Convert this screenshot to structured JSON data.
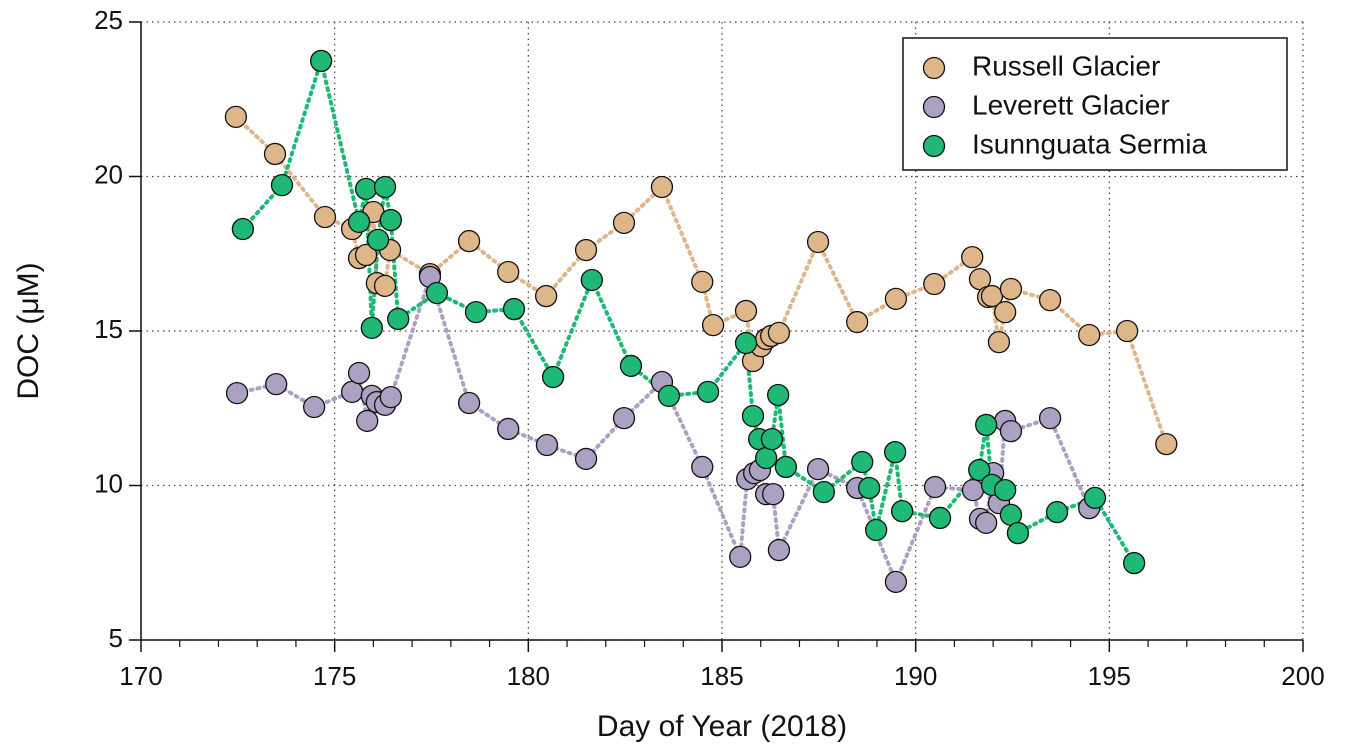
{
  "chart_data": {
    "type": "scatter-line",
    "xlabel": "Day of Year (2018)",
    "ylabel": "DOC (μM)",
    "xlim": [
      170,
      200
    ],
    "ylim": [
      5,
      25
    ],
    "xticks": [
      170,
      175,
      180,
      185,
      190,
      195,
      200
    ],
    "xminorticks": [
      171,
      172,
      173,
      174,
      176,
      177,
      178,
      179,
      181,
      182,
      183,
      184,
      186,
      187,
      188,
      189,
      191,
      192,
      193,
      194,
      196,
      197,
      198,
      199
    ],
    "yticks": [
      5,
      10,
      15,
      20,
      25
    ],
    "grid": true,
    "legend": "upper-right",
    "series": [
      {
        "name": "Russell Glacier",
        "color": "#dfb68a",
        "x": [
          172.45,
          173.46,
          174.75,
          175.45,
          175.63,
          175.81,
          176.0,
          176.09,
          176.3,
          176.43,
          177.46,
          178.47,
          179.48,
          180.46,
          181.49,
          182.47,
          183.45,
          184.49,
          184.77,
          185.62,
          185.8,
          186.01,
          186.14,
          186.27,
          186.47,
          187.48,
          188.49,
          189.49,
          190.48,
          191.46,
          191.66,
          191.87,
          191.97,
          192.15,
          192.31,
          192.46,
          193.47,
          194.48,
          195.46,
          196.47
        ],
        "values": [
          21.93,
          20.73,
          18.69,
          18.3,
          17.36,
          17.46,
          18.85,
          16.55,
          16.46,
          17.62,
          16.84,
          17.91,
          16.91,
          16.13,
          17.62,
          18.5,
          19.66,
          16.59,
          15.19,
          15.65,
          14.03,
          14.51,
          14.74,
          14.84,
          14.94,
          17.88,
          15.29,
          16.04,
          16.52,
          17.39,
          16.68,
          16.1,
          16.13,
          14.64,
          15.61,
          16.36,
          16.0,
          14.87,
          15.0,
          11.34
        ]
      },
      {
        "name": "Leverett Glacier",
        "color": "#aca1c2",
        "x": [
          172.48,
          173.49,
          174.47,
          175.45,
          175.63,
          175.84,
          175.96,
          176.09,
          176.3,
          176.45,
          177.46,
          178.47,
          179.48,
          180.48,
          181.49,
          182.47,
          183.45,
          184.49,
          185.47,
          185.65,
          185.83,
          185.98,
          186.14,
          186.32,
          186.47,
          187.48,
          188.49,
          189.49,
          190.5,
          191.48,
          191.66,
          191.82,
          192.0,
          192.15,
          192.31,
          192.46,
          193.47,
          194.48
        ],
        "values": [
          12.99,
          13.28,
          12.54,
          13.03,
          13.64,
          12.09,
          12.9,
          12.7,
          12.61,
          12.86,
          16.75,
          12.67,
          11.83,
          11.31,
          10.86,
          12.18,
          13.35,
          10.6,
          7.69,
          10.21,
          10.4,
          10.5,
          9.72,
          9.72,
          7.91,
          10.53,
          9.92,
          6.88,
          9.95,
          9.85,
          8.92,
          8.79,
          10.4,
          9.43,
          12.09,
          11.76,
          12.18,
          9.27
        ]
      },
      {
        "name": "Isunnguata Sermia",
        "color": "#1fb874",
        "x": [
          172.63,
          173.64,
          174.65,
          175.63,
          175.81,
          175.96,
          176.12,
          176.3,
          176.45,
          176.64,
          177.64,
          178.65,
          179.63,
          180.64,
          181.64,
          182.65,
          183.63,
          184.64,
          185.62,
          185.8,
          185.96,
          186.14,
          186.29,
          186.45,
          186.65,
          187.63,
          188.62,
          188.8,
          188.98,
          189.47,
          189.65,
          190.63,
          191.64,
          191.82,
          191.97,
          192.31,
          192.46,
          192.64,
          193.65,
          194.63,
          195.64
        ],
        "values": [
          18.3,
          19.72,
          23.74,
          18.53,
          19.6,
          15.1,
          17.95,
          19.66,
          18.59,
          15.39,
          16.23,
          15.61,
          15.71,
          13.51,
          16.65,
          13.87,
          12.9,
          13.03,
          14.61,
          12.25,
          11.5,
          10.89,
          11.5,
          12.93,
          10.6,
          9.79,
          10.76,
          9.92,
          8.56,
          11.08,
          9.17,
          8.95,
          10.5,
          11.96,
          10.02,
          9.85,
          9.05,
          8.46,
          9.14,
          9.6,
          7.49
        ]
      }
    ]
  }
}
